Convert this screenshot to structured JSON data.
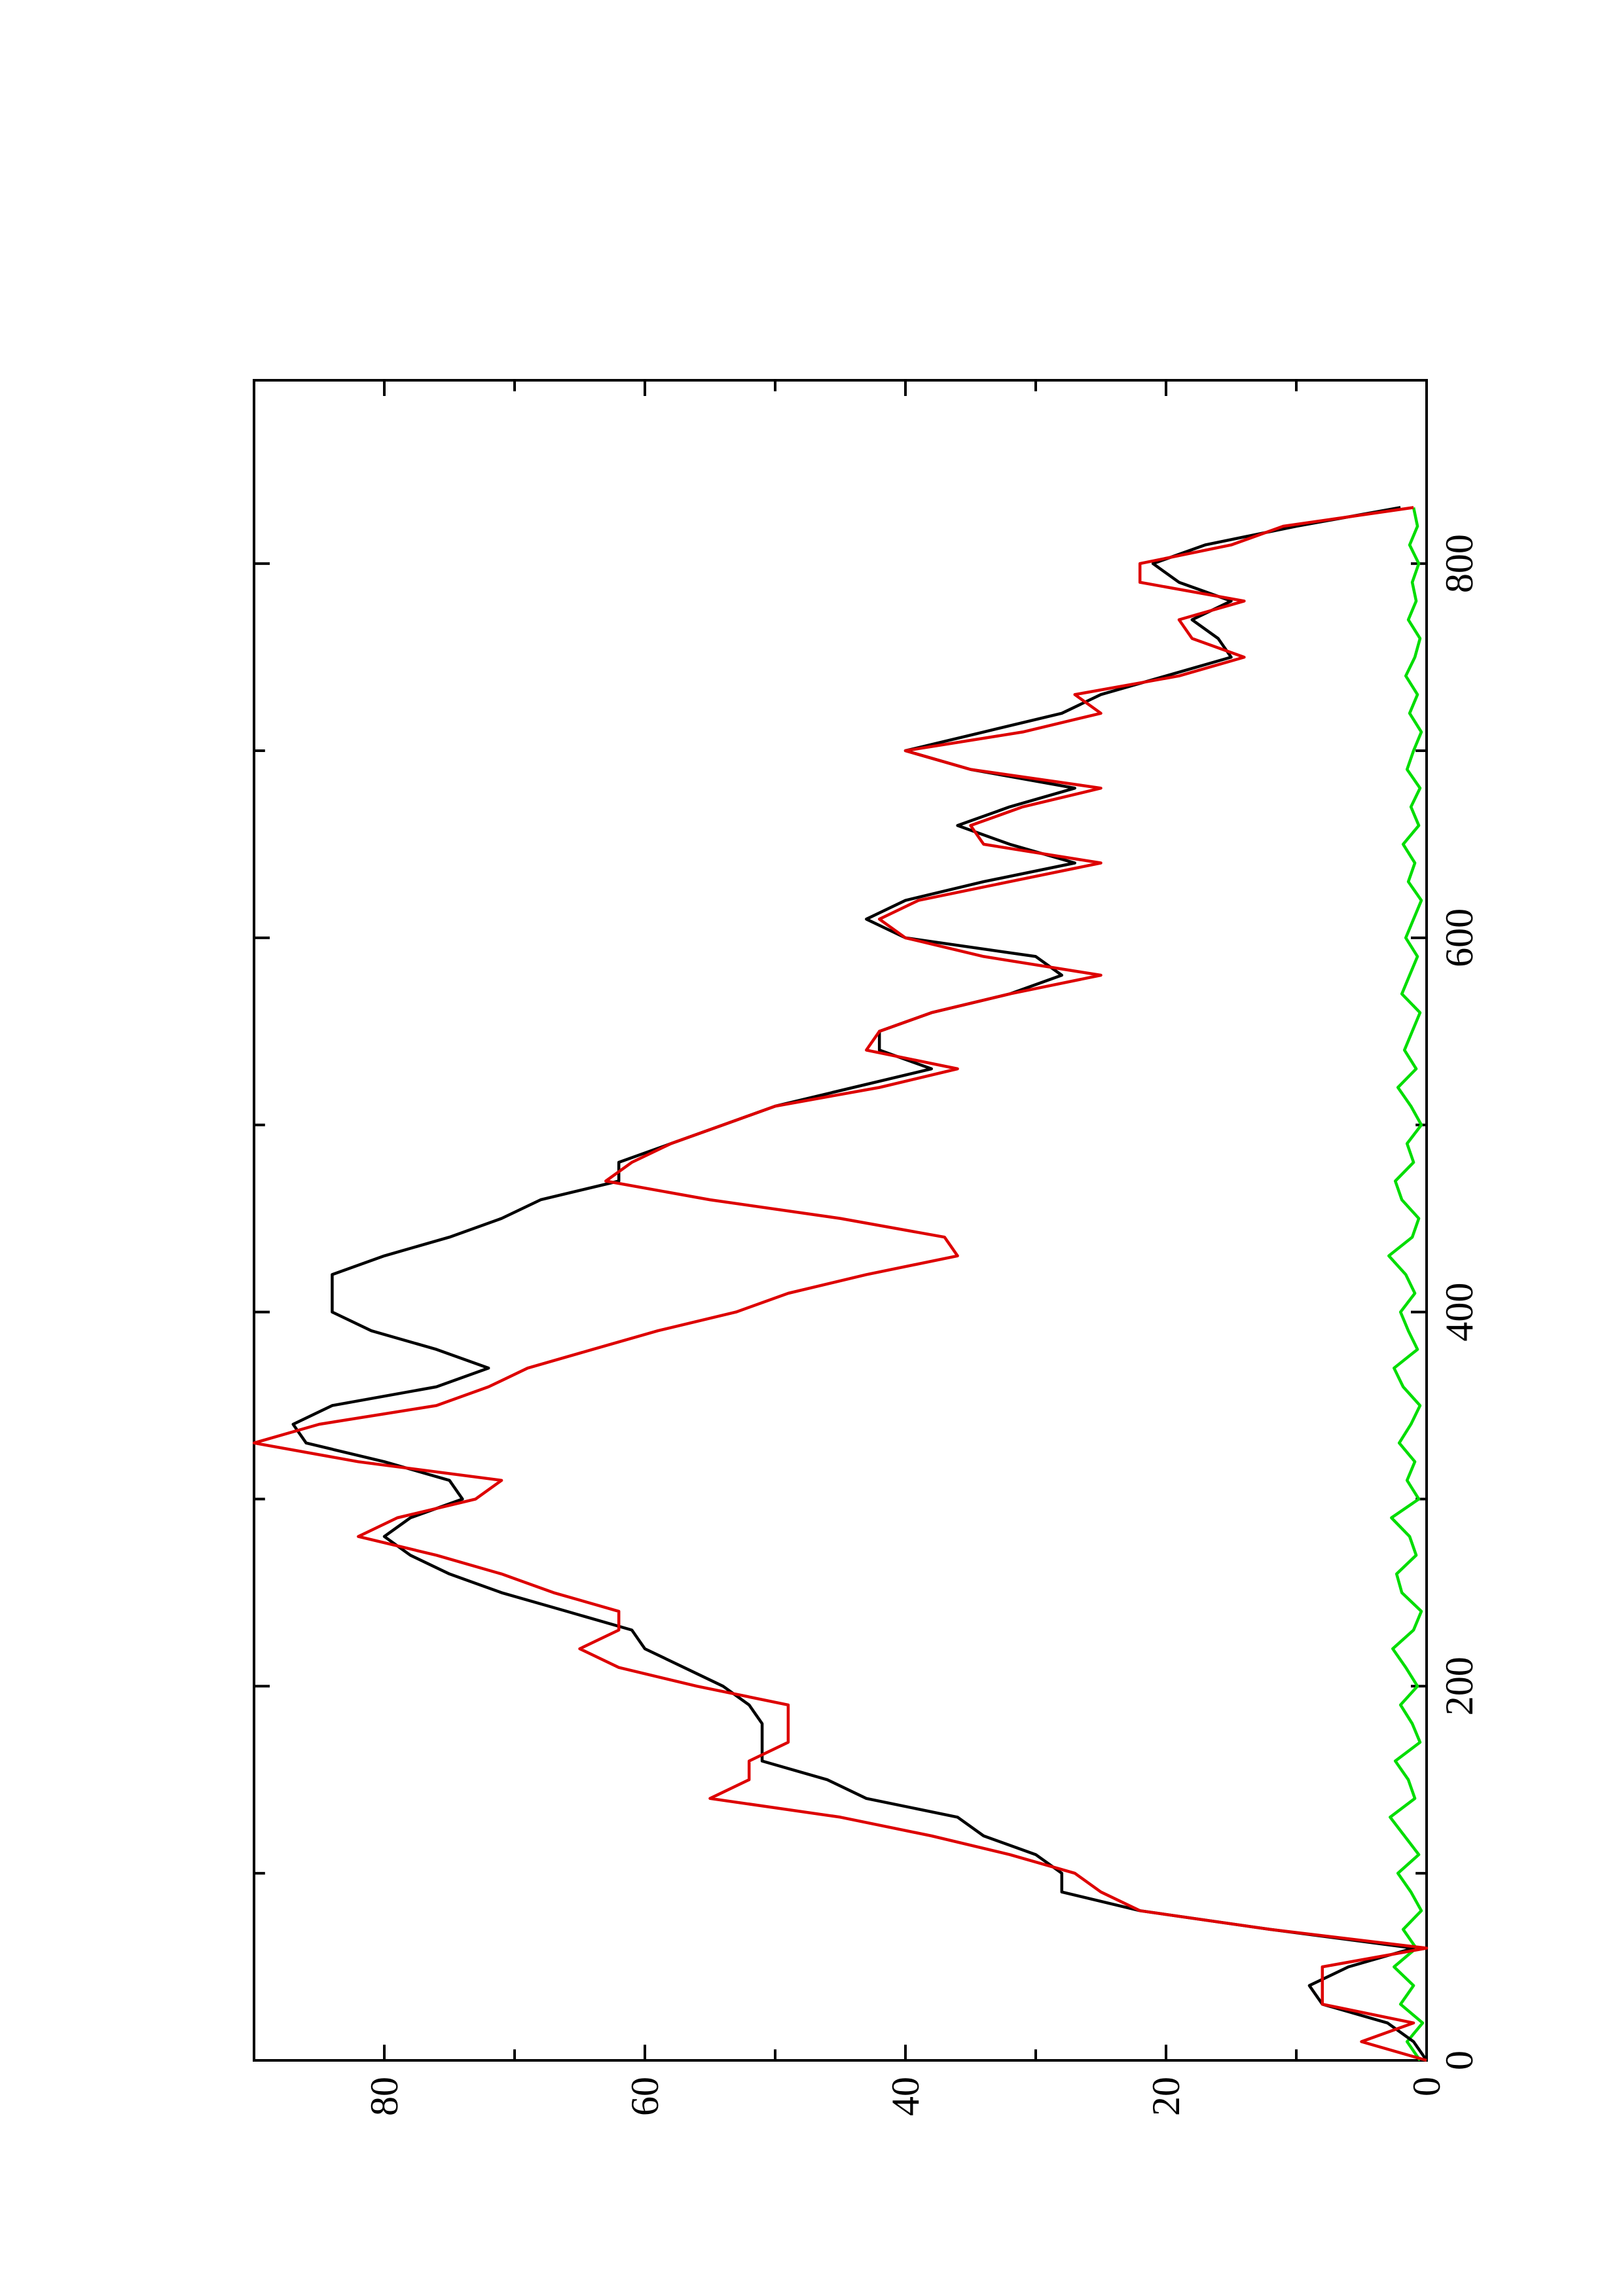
{
  "chart_data": {
    "type": "line",
    "x": [
      0,
      10,
      20,
      30,
      40,
      50,
      60,
      70,
      80,
      90,
      100,
      110,
      120,
      130,
      140,
      150,
      160,
      170,
      180,
      190,
      200,
      210,
      220,
      230,
      240,
      250,
      260,
      270,
      280,
      290,
      300,
      310,
      320,
      330,
      340,
      350,
      360,
      370,
      380,
      390,
      400,
      410,
      420,
      430,
      440,
      450,
      460,
      470,
      480,
      490,
      500,
      510,
      520,
      530,
      540,
      550,
      560,
      570,
      580,
      590,
      600,
      610,
      620,
      630,
      640,
      650,
      660,
      670,
      680,
      690,
      700,
      710,
      720,
      730,
      740,
      750,
      760,
      770,
      780,
      790,
      800,
      810,
      820,
      830
    ],
    "series": [
      {
        "color": "#000000",
        "values": [
          0,
          1,
          3,
          8,
          9,
          6,
          1,
          12,
          22,
          28,
          28,
          30,
          34,
          36,
          43,
          46,
          51,
          51,
          51,
          52,
          54,
          57,
          60,
          61,
          66,
          71,
          75,
          78,
          80,
          78,
          74,
          75,
          80,
          86,
          87,
          84,
          76,
          72,
          76,
          81,
          84,
          84,
          84,
          80,
          75,
          71,
          68,
          62,
          62,
          58,
          54,
          50,
          44,
          38,
          42,
          42,
          38,
          32,
          28,
          30,
          40,
          43,
          40,
          34,
          27,
          32,
          36,
          32,
          27,
          35,
          40,
          34,
          28,
          25,
          20,
          15,
          16,
          18,
          15,
          19,
          21,
          17,
          10,
          2
        ]
      },
      {
        "color": "#dd0000",
        "values": [
          0,
          5,
          1,
          8,
          8,
          8,
          0,
          12,
          22,
          25,
          27,
          32,
          38,
          45,
          55,
          52,
          52,
          49,
          49,
          49,
          56,
          62,
          65,
          62,
          62,
          67,
          71,
          76,
          82,
          79,
          73,
          71,
          82,
          90,
          85,
          76,
          72,
          69,
          64,
          59,
          53,
          49,
          43,
          36,
          37,
          45,
          55,
          63,
          61,
          58,
          54,
          50,
          42,
          36,
          43,
          42,
          38,
          32,
          25,
          34,
          40,
          42,
          39,
          32,
          25,
          34,
          35,
          31,
          25,
          35,
          40,
          31,
          25,
          27,
          19,
          14,
          18,
          19,
          14,
          22,
          22,
          15,
          11,
          1
        ]
      },
      {
        "color": "#00dd00",
        "values": [
          0.5,
          1.5,
          0.3,
          2,
          1,
          2.5,
          0.8,
          1.8,
          0.4,
          1.2,
          2.2,
          0.6,
          1.7,
          2.8,
          0.9,
          1.4,
          2.4,
          0.5,
          1.1,
          2,
          0.7,
          1.6,
          2.6,
          1,
          0.4,
          1.9,
          2.3,
          0.8,
          1.3,
          2.7,
          0.6,
          1.5,
          0.9,
          2.1,
          1.2,
          0.5,
          1.8,
          2.5,
          0.7,
          1.4,
          2,
          0.9,
          1.6,
          2.9,
          1.1,
          0.6,
          1.9,
          2.4,
          1,
          1.5,
          0.4,
          1.2,
          2.2,
          0.8,
          1.7,
          1.1,
          0.5,
          1.9,
          1.3,
          0.7,
          1.6,
          1,
          0.4,
          1.4,
          0.9,
          1.8,
          0.6,
          1.2,
          0.5,
          1.5,
          1,
          0.4,
          1.3,
          0.7,
          1.6,
          0.9,
          0.5,
          1.4,
          0.8,
          1.1,
          0.6,
          1.3,
          0.7,
          1
        ]
      }
    ],
    "xlim": [
      0,
      898
    ],
    "xticks": [
      0,
      200,
      400,
      600,
      800
    ],
    "xticks_minor": [
      100,
      300,
      500,
      700
    ],
    "ylim": [
      0,
      90
    ],
    "yticks": [
      0,
      20,
      40,
      60,
      80
    ],
    "yticks_minor": [
      10,
      30,
      50,
      70
    ],
    "rotation": -90
  }
}
